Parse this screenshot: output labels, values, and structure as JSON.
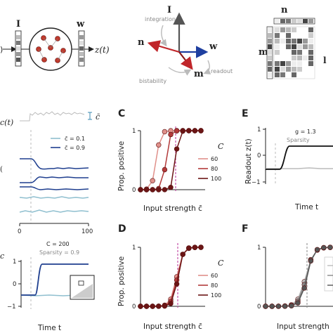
{
  "top": {
    "left": {
      "I": "I",
      "w": "w",
      "z": "z(t)",
      "left_partial": ")"
    },
    "middle": {
      "I": "I",
      "n": "n",
      "w": "w",
      "m": "m",
      "integration": "integration",
      "bistability": "bistability",
      "readout": "readout"
    },
    "right": {
      "n": "n",
      "m": "m",
      "edge": "l"
    }
  },
  "panelA": {
    "c_label": "c(t)",
    "cbar": "c̄",
    "legend": [
      "c̄ = 0.1",
      "c̄ = 0.9"
    ],
    "xticks": [
      "0",
      "100"
    ],
    "inset": {
      "C": "C = 200",
      "sparsity": "Sparsity = 0.9"
    },
    "yticks": [
      "1",
      "0",
      "−1"
    ],
    "xlabel": "Time t",
    "colors": {
      "light": "#8fbfcf",
      "dark": "#1f3f8f"
    }
  },
  "panelC": {
    "letter": "C",
    "ylabel": "Prop. positive",
    "xlabel": "Input strength c̄",
    "yticks": [
      "1",
      "0"
    ],
    "legend_title": "C",
    "legend": [
      "60",
      "80",
      "100"
    ],
    "colors": [
      "#e0908a",
      "#b23a3a",
      "#6b1515"
    ]
  },
  "panelD": {
    "letter": "D",
    "ylabel": "Prop. positive",
    "xlabel": "Input strength c̄",
    "yticks": [
      "1",
      "0"
    ],
    "legend_title": "C",
    "legend": [
      "60",
      "80",
      "100"
    ],
    "colors": [
      "#e0908a",
      "#b23a3a",
      "#6b1515"
    ]
  },
  "panelE": {
    "letter": "E",
    "ylabel": "Readout z(t)",
    "xlabel": "Time t",
    "yticks": [
      "1",
      "0",
      "−1"
    ],
    "g": "g = 1.3",
    "sparsity": "Sparsity"
  },
  "panelF": {
    "letter": "F",
    "xlabel": "Input strength",
    "yticks": [
      "1",
      "0"
    ]
  }
}
